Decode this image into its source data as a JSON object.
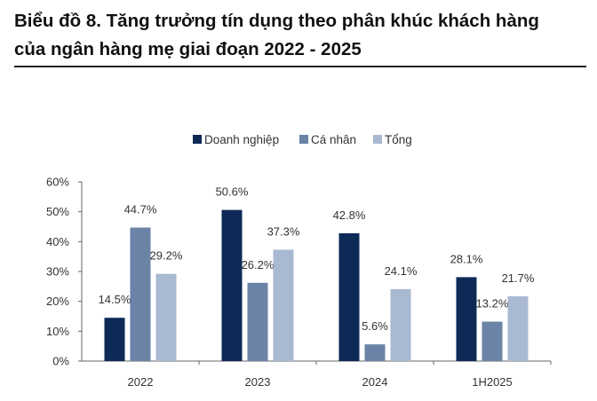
{
  "title": {
    "line1": "Biểu đồ 8. Tăng trưởng tín dụng theo phân khúc khách hàng",
    "line2": "của ngân hàng mẹ giai đoạn 2022 - 2025"
  },
  "colors": {
    "doanh_nghiep": "#0d2a57",
    "ca_nhan": "#6a83a6",
    "tong": "#a9b9d1",
    "axis": "#666666",
    "text": "#333333"
  },
  "chart_data": {
    "type": "bar",
    "categories": [
      "2022",
      "2023",
      "2024",
      "1H2025"
    ],
    "series": [
      {
        "name": "Doanh nghiệp",
        "values": [
          14.5,
          50.6,
          42.8,
          28.1
        ],
        "labels": [
          "14.5%",
          "50.6%",
          "42.8%",
          "28.1%"
        ]
      },
      {
        "name": "Cá nhân",
        "values": [
          44.7,
          26.2,
          5.6,
          13.2
        ],
        "labels": [
          "44.7%",
          "26.2%",
          "5.6%",
          "13.2%"
        ]
      },
      {
        "name": "Tổng",
        "values": [
          29.2,
          37.3,
          24.1,
          21.7
        ],
        "labels": [
          "29.2%",
          "37.3%",
          "24.1%",
          "21.7%"
        ]
      }
    ],
    "ylim": [
      0,
      60
    ],
    "yticks": [
      0,
      10,
      20,
      30,
      40,
      50,
      60
    ],
    "ytick_labels": [
      "0%",
      "10%",
      "20%",
      "30%",
      "40%",
      "50%",
      "60%"
    ],
    "legend_position": "top-center",
    "grid": false
  }
}
